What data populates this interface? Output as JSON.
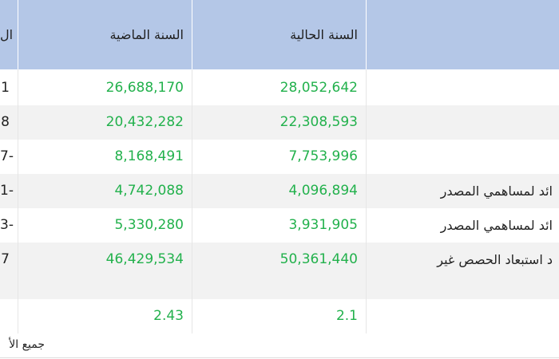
{
  "table": {
    "headers": {
      "first_col": "ال",
      "last_year": "السنة الماضية",
      "current_year": "السنة الحالية",
      "item": ""
    },
    "rows": [
      {
        "first": "1",
        "last_year": "26,688,170",
        "current_year": "28,052,642",
        "label": ""
      },
      {
        "first": "8",
        "last_year": "20,432,282",
        "current_year": "22,308,593",
        "label": ""
      },
      {
        "first": "7-",
        "last_year": "8,168,491",
        "current_year": "7,753,996",
        "label": ""
      },
      {
        "first": "1-",
        "last_year": "4,742,088",
        "current_year": "4,096,894",
        "label": "ائد لمساهمي المصدر"
      },
      {
        "first": "3-",
        "last_year": "5,330,280",
        "current_year": "3,931,905",
        "label": "ائد لمساهمي المصدر"
      },
      {
        "first": "7",
        "last_year": "46,429,534",
        "current_year": "50,361,440",
        "label": "د استبعاد الحصص غير"
      },
      {
        "first": "",
        "last_year": "",
        "current_year": "",
        "label": ""
      },
      {
        "first": "",
        "last_year": "2.43",
        "current_year": "2.1",
        "label": ""
      }
    ]
  },
  "footer": {
    "note": "جميع الأ"
  }
}
